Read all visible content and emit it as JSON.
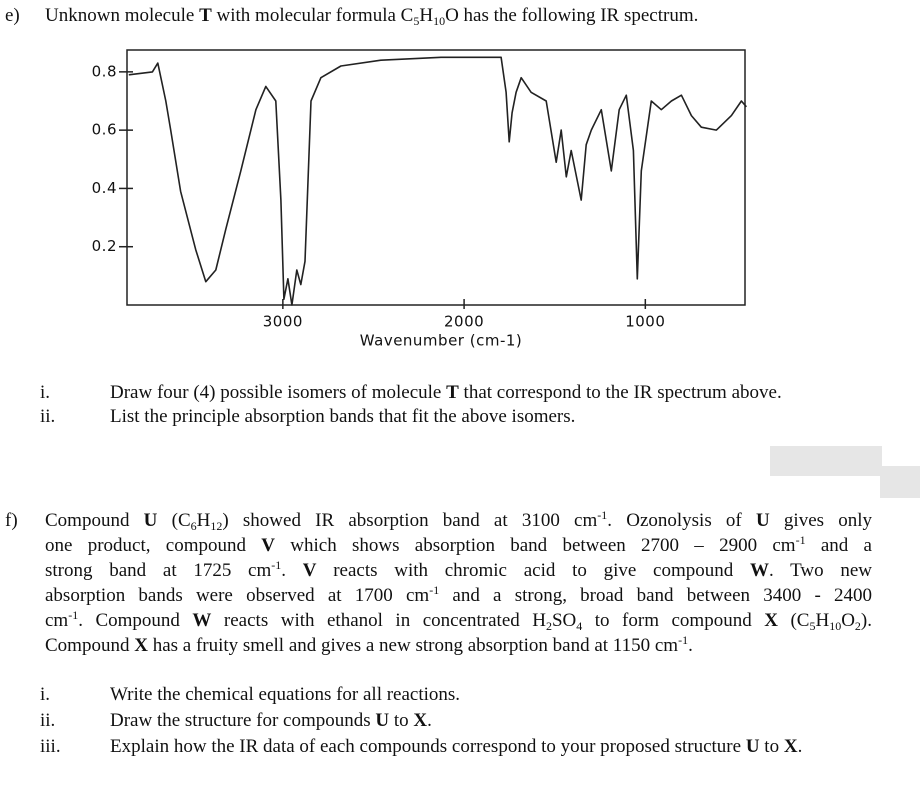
{
  "question_e": {
    "label": "e)",
    "text": [
      {
        "text": "Unknown molecule "
      },
      {
        "text": "T",
        "style": "bold"
      },
      {
        "text": " with molecular formula C"
      },
      {
        "text": "5",
        "style": "sub"
      },
      {
        "text": "H"
      },
      {
        "text": "10",
        "style": "sub"
      },
      {
        "text": "O has the following  IR spectrum."
      }
    ],
    "items": [
      {
        "label": "i.",
        "text": [
          {
            "text": "Draw four (4) possible isomers of molecule "
          },
          {
            "text": "T",
            "style": "bold"
          },
          {
            "text": " that correspond to the IR spectrum above."
          }
        ]
      },
      {
        "label": "ii.",
        "text": [
          {
            "text": "List the principle  absorption bands that fit the above isomers."
          }
        ]
      }
    ]
  },
  "chart_data": {
    "type": "line",
    "x_label": "Wavenumber (cm-1)",
    "xlim": [
      3860,
      450
    ],
    "ylim": [
      0,
      0.875
    ],
    "xticks": [
      3000,
      2000,
      1000
    ],
    "yticks": [
      0.2,
      0.4,
      0.6,
      0.8
    ],
    "grid": false,
    "x": [
      3850,
      3720,
      3690,
      3646,
      3619,
      3564,
      3481,
      3425,
      3370,
      3315,
      3232,
      3149,
      3094,
      3039,
      3011,
      2994,
      2972,
      2950,
      2923,
      2901,
      2878,
      2845,
      2790,
      2680,
      2459,
      2127,
      1796,
      1768,
      1751,
      1735,
      1713,
      1685,
      1630,
      1547,
      1492,
      1464,
      1436,
      1409,
      1354,
      1326,
      1298,
      1243,
      1188,
      1144,
      1105,
      1066,
      1044,
      1022,
      967,
      912,
      856,
      801,
      746,
      691,
      608,
      525,
      470,
      442
    ],
    "series": [
      {
        "color": "#222222",
        "values": [
          0.79,
          0.8,
          0.83,
          0.7,
          0.6,
          0.39,
          0.19,
          0.08,
          0.12,
          0.26,
          0.46,
          0.67,
          0.75,
          0.7,
          0.36,
          0.02,
          0.09,
          0.0,
          0.12,
          0.07,
          0.15,
          0.7,
          0.78,
          0.82,
          0.84,
          0.85,
          0.85,
          0.73,
          0.56,
          0.66,
          0.73,
          0.78,
          0.73,
          0.7,
          0.49,
          0.6,
          0.44,
          0.53,
          0.36,
          0.55,
          0.6,
          0.67,
          0.46,
          0.67,
          0.72,
          0.53,
          0.09,
          0.46,
          0.7,
          0.67,
          0.7,
          0.72,
          0.65,
          0.61,
          0.6,
          0.65,
          0.7,
          0.68
        ]
      }
    ]
  },
  "question_f": {
    "label": "f)",
    "lines": [
      [
        {
          "text": "Compound "
        },
        {
          "text": "U",
          "style": "bold"
        },
        {
          "text": " (C"
        },
        {
          "text": "6",
          "style": "sub"
        },
        {
          "text": "H"
        },
        {
          "text": "12",
          "style": "sub"
        },
        {
          "text": ") showed IR absorption band at 3100 cm"
        },
        {
          "text": "-1",
          "style": "sup"
        },
        {
          "text": ". Ozonolysis  of "
        },
        {
          "text": "U",
          "style": "bold"
        },
        {
          "text": " gives only"
        }
      ],
      [
        {
          "text": "one product, compound "
        },
        {
          "text": "V",
          "style": "bold"
        },
        {
          "text": " which shows absorption band between 2700 – 2900 cm"
        },
        {
          "text": "-1",
          "style": "sup"
        },
        {
          "text": " and a"
        }
      ],
      [
        {
          "text": "strong band at 1725 cm"
        },
        {
          "text": "-1",
          "style": "sup"
        },
        {
          "text": ". "
        },
        {
          "text": "V",
          "style": "bold"
        },
        {
          "text": " reacts with chromic acid to give compound "
        },
        {
          "text": "W",
          "style": "bold"
        },
        {
          "text": ". Two new"
        }
      ],
      [
        {
          "text": "absorption bands were observed at 1700 cm"
        },
        {
          "text": "-1",
          "style": "sup"
        },
        {
          "text": " and a strong, broad band between 3400 - 2400"
        }
      ],
      [
        {
          "text": "cm"
        },
        {
          "text": "-1",
          "style": "sup"
        },
        {
          "text": ". Compound "
        },
        {
          "text": "W",
          "style": "bold"
        },
        {
          "text": " reacts with ethanol in concentrated H"
        },
        {
          "text": "2",
          "style": "sub"
        },
        {
          "text": "SO"
        },
        {
          "text": "4",
          "style": "sub"
        },
        {
          "text": " to form compound "
        },
        {
          "text": "X",
          "style": "bold"
        },
        {
          "text": " (C"
        },
        {
          "text": "5",
          "style": "sub"
        },
        {
          "text": "H"
        },
        {
          "text": "10",
          "style": "sub"
        },
        {
          "text": "O"
        },
        {
          "text": "2",
          "style": "sub"
        },
        {
          "text": ")."
        }
      ],
      [
        {
          "text": "Compound "
        },
        {
          "text": "X",
          "style": "bold"
        },
        {
          "text": " has a fruity smell and gives a new strong absorption band at 1150 cm"
        },
        {
          "text": "-1",
          "style": "sup"
        },
        {
          "text": "."
        }
      ]
    ],
    "items": [
      {
        "label": "i.",
        "text": [
          {
            "text": "Write the chemical equations for all reactions."
          }
        ]
      },
      {
        "label": "ii.",
        "text": [
          {
            "text": "Draw the structure for compounds "
          },
          {
            "text": "U",
            "style": "bold"
          },
          {
            "text": " to "
          },
          {
            "text": "X",
            "style": "bold"
          },
          {
            "text": "."
          }
        ]
      },
      {
        "label": "iii.",
        "text": [
          {
            "text": "Explain  how the IR data of each compounds correspond to your proposed structure "
          },
          {
            "text": "U",
            "style": "bold"
          },
          {
            "text": " to "
          },
          {
            "text": "X",
            "style": "bold"
          },
          {
            "text": "."
          }
        ]
      }
    ]
  }
}
